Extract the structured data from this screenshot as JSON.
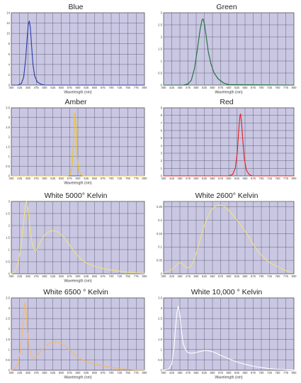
{
  "colors": {
    "plot_bg": "#c9c7e2",
    "grid": "#5a5a6e",
    "axis": "#333333"
  },
  "chart_data": [
    {
      "type": "line",
      "title": "Blue",
      "xlabel": "Wavelength (nm)",
      "xlim": [
        400,
        800
      ],
      "xticks": [
        400,
        425,
        450,
        475,
        500,
        525,
        550,
        575,
        600,
        625,
        650,
        675,
        700,
        725,
        750,
        775,
        800
      ],
      "ylim": [
        0,
        14
      ],
      "yticks": [
        0,
        2,
        4,
        6,
        8,
        10,
        12,
        14
      ],
      "series": [
        {
          "color": "#2a3aa8",
          "points": [
            [
              400,
              0
            ],
            [
              420,
              0
            ],
            [
              430,
              0.3
            ],
            [
              437,
              1.5
            ],
            [
              443,
              5
            ],
            [
              448,
              9.5
            ],
            [
              451,
              11.8
            ],
            [
              454,
              12.4
            ],
            [
              457,
              11.2
            ],
            [
              461,
              7.5
            ],
            [
              465,
              4
            ],
            [
              470,
              1.8
            ],
            [
              478,
              0.6
            ],
            [
              490,
              0.15
            ],
            [
              500,
              0
            ],
            [
              800,
              0
            ]
          ]
        }
      ]
    },
    {
      "type": "line",
      "title": "Green",
      "xlabel": "Wavelength (nm)",
      "xlim": [
        400,
        800
      ],
      "xticks": [
        400,
        425,
        450,
        475,
        500,
        525,
        550,
        575,
        600,
        625,
        650,
        675,
        700,
        725,
        750,
        775,
        800
      ],
      "ylim": [
        0,
        3.0
      ],
      "yticks": [
        0,
        0.5,
        1.0,
        1.5,
        2.0,
        2.5,
        3.0
      ],
      "series": [
        {
          "color": "#1d6e3a",
          "points": [
            [
              400,
              0
            ],
            [
              460,
              0
            ],
            [
              475,
              0.05
            ],
            [
              485,
              0.2
            ],
            [
              495,
              0.7
            ],
            [
              505,
              1.6
            ],
            [
              512,
              2.3
            ],
            [
              518,
              2.7
            ],
            [
              521,
              2.75
            ],
            [
              525,
              2.55
            ],
            [
              530,
              2.1
            ],
            [
              537,
              1.4
            ],
            [
              545,
              0.9
            ],
            [
              555,
              0.5
            ],
            [
              568,
              0.25
            ],
            [
              585,
              0.08
            ],
            [
              600,
              0.02
            ],
            [
              800,
              0
            ]
          ]
        }
      ]
    },
    {
      "type": "line",
      "title": "Amber",
      "xlabel": "Wavelength (nm)",
      "xlim": [
        400,
        800
      ],
      "xticks": [
        400,
        425,
        450,
        475,
        500,
        525,
        550,
        575,
        600,
        625,
        650,
        675,
        700,
        725,
        750,
        775,
        800
      ],
      "ylim": [
        0,
        3.5
      ],
      "yticks": [
        0,
        0.5,
        1.0,
        1.5,
        2.0,
        2.5,
        3.0,
        3.5
      ],
      "series": [
        {
          "color": "#f0c419",
          "points": [
            [
              400,
              0
            ],
            [
              570,
              0
            ],
            [
              578,
              0.1
            ],
            [
              583,
              0.6
            ],
            [
              587,
              1.8
            ],
            [
              590,
              3.1
            ],
            [
              592,
              3.25
            ],
            [
              595,
              2.2
            ],
            [
              598,
              1.0
            ],
            [
              602,
              0.35
            ],
            [
              608,
              0.08
            ],
            [
              615,
              0
            ],
            [
              800,
              0
            ]
          ]
        }
      ]
    },
    {
      "type": "line",
      "title": "Red",
      "xlabel": "",
      "xlim": [
        400,
        800
      ],
      "xticks": [
        400,
        425,
        450,
        475,
        500,
        525,
        550,
        575,
        600,
        625,
        650,
        675,
        700,
        725,
        750,
        775,
        800
      ],
      "ylim": [
        0,
        9
      ],
      "yticks": [
        0,
        1,
        2,
        3,
        4,
        5,
        6,
        7,
        8,
        9
      ],
      "series": [
        {
          "color": "#e02020",
          "points": [
            [
              400,
              0
            ],
            [
              600,
              0
            ],
            [
              612,
              0.2
            ],
            [
              620,
              1.0
            ],
            [
              626,
              3
            ],
            [
              631,
              6.3
            ],
            [
              634,
              7.8
            ],
            [
              636,
              8.2
            ],
            [
              639,
              7.2
            ],
            [
              643,
              4.8
            ],
            [
              648,
              2.2
            ],
            [
              654,
              0.8
            ],
            [
              662,
              0.2
            ],
            [
              672,
              0
            ],
            [
              800,
              0
            ]
          ]
        }
      ]
    },
    {
      "type": "line",
      "title": "White 5000° Kelvin",
      "xlabel": "Wavelength (nm)",
      "xlim": [
        400,
        800
      ],
      "xticks": [
        400,
        425,
        450,
        475,
        500,
        525,
        550,
        575,
        600,
        625,
        650,
        675,
        700,
        725,
        750,
        775,
        800
      ],
      "ylim": [
        0,
        3.0
      ],
      "yticks": [
        0,
        0.5,
        1.0,
        1.5,
        2.0,
        2.5,
        3.0
      ],
      "series": [
        {
          "color": "#f3e27a",
          "points": [
            [
              400,
              0
            ],
            [
              410,
              0.08
            ],
            [
              420,
              0.4
            ],
            [
              430,
              1.2
            ],
            [
              438,
              2.3
            ],
            [
              443,
              2.9
            ],
            [
              446,
              3.0
            ],
            [
              450,
              2.7
            ],
            [
              456,
              1.9
            ],
            [
              462,
              1.3
            ],
            [
              468,
              1.0
            ],
            [
              473,
              0.95
            ],
            [
              480,
              1.1
            ],
            [
              490,
              1.4
            ],
            [
              500,
              1.6
            ],
            [
              510,
              1.72
            ],
            [
              520,
              1.78
            ],
            [
              530,
              1.78
            ],
            [
              540,
              1.73
            ],
            [
              550,
              1.62
            ],
            [
              560,
              1.48
            ],
            [
              570,
              1.28
            ],
            [
              580,
              1.08
            ],
            [
              590,
              0.9
            ],
            [
              600,
              0.74
            ],
            [
              610,
              0.6
            ],
            [
              620,
              0.5
            ],
            [
              630,
              0.42
            ],
            [
              640,
              0.36
            ],
            [
              660,
              0.27
            ],
            [
              680,
              0.2
            ],
            [
              700,
              0.16
            ],
            [
              720,
              0.12
            ],
            [
              740,
              0.08
            ],
            [
              760,
              0.05
            ],
            [
              780,
              0.03
            ],
            [
              800,
              0.02
            ]
          ]
        }
      ]
    },
    {
      "type": "line",
      "title": "White 2600° Kelvin",
      "xlabel": "",
      "xlim": [
        400,
        800
      ],
      "xticks": [
        400,
        425,
        450,
        475,
        500,
        525,
        550,
        575,
        600,
        625,
        650,
        675,
        700,
        725,
        750,
        775,
        800
      ],
      "ylim": [
        0,
        0.27
      ],
      "yticks": [
        0,
        0.05,
        0.1,
        0.15,
        0.2,
        0.25
      ],
      "series": [
        {
          "color": "#f3e27a",
          "points": [
            [
              400,
              0.005
            ],
            [
              420,
              0.012
            ],
            [
              435,
              0.025
            ],
            [
              445,
              0.038
            ],
            [
              452,
              0.042
            ],
            [
              460,
              0.035
            ],
            [
              468,
              0.025
            ],
            [
              475,
              0.022
            ],
            [
              485,
              0.03
            ],
            [
              495,
              0.055
            ],
            [
              505,
              0.095
            ],
            [
              515,
              0.14
            ],
            [
              525,
              0.18
            ],
            [
              535,
              0.21
            ],
            [
              545,
              0.235
            ],
            [
              555,
              0.248
            ],
            [
              565,
              0.255
            ],
            [
              575,
              0.256
            ],
            [
              585,
              0.252
            ],
            [
              595,
              0.243
            ],
            [
              605,
              0.23
            ],
            [
              615,
              0.215
            ],
            [
              625,
              0.2
            ],
            [
              635,
              0.185
            ],
            [
              645,
              0.168
            ],
            [
              655,
              0.15
            ],
            [
              665,
              0.13
            ],
            [
              675,
              0.11
            ],
            [
              685,
              0.092
            ],
            [
              695,
              0.076
            ],
            [
              705,
              0.064
            ],
            [
              715,
              0.052
            ],
            [
              725,
              0.043
            ],
            [
              735,
              0.035
            ],
            [
              745,
              0.03
            ],
            [
              755,
              0.024
            ],
            [
              765,
              0.018
            ],
            [
              775,
              0.012
            ],
            [
              785,
              0.008
            ],
            [
              790,
              0.005
            ]
          ]
        }
      ]
    },
    {
      "type": "line",
      "title": "White 6500 ° Kelvin",
      "xlabel": "Wavelength (nm)",
      "xlim": [
        400,
        800
      ],
      "xticks": [
        400,
        425,
        450,
        475,
        500,
        525,
        550,
        575,
        600,
        625,
        650,
        675,
        700,
        725,
        750,
        775,
        800
      ],
      "ylim": [
        0,
        3.5
      ],
      "yticks": [
        0,
        0.5,
        1.0,
        1.5,
        2.0,
        2.5,
        3.0,
        3.5
      ],
      "series": [
        {
          "color": "#f7b764",
          "points": [
            [
              400,
              0
            ],
            [
              410,
              0.05
            ],
            [
              420,
              0.3
            ],
            [
              428,
              1.0
            ],
            [
              434,
              2.0
            ],
            [
              438,
              2.8
            ],
            [
              441,
              3.3
            ],
            [
              444,
              3.0
            ],
            [
              448,
              2.0
            ],
            [
              453,
              1.2
            ],
            [
              458,
              0.8
            ],
            [
              465,
              0.6
            ],
            [
              472,
              0.62
            ],
            [
              480,
              0.75
            ],
            [
              490,
              0.95
            ],
            [
              500,
              1.12
            ],
            [
              510,
              1.25
            ],
            [
              520,
              1.34
            ],
            [
              530,
              1.38
            ],
            [
              540,
              1.36
            ],
            [
              550,
              1.3
            ],
            [
              560,
              1.2
            ],
            [
              570,
              1.05
            ],
            [
              580,
              0.9
            ],
            [
              590,
              0.75
            ],
            [
              600,
              0.62
            ],
            [
              615,
              0.5
            ],
            [
              630,
              0.4
            ],
            [
              650,
              0.3
            ],
            [
              670,
              0.22
            ],
            [
              690,
              0.16
            ],
            [
              710,
              0.11
            ],
            [
              730,
              0.07
            ],
            [
              750,
              0.04
            ],
            [
              770,
              0.02
            ],
            [
              800,
              0.01
            ]
          ]
        }
      ]
    },
    {
      "type": "line",
      "title": "White 10,000 ° Kelvin",
      "xlabel": "Wavelength (nm)",
      "xlim": [
        400,
        800
      ],
      "xticks": [
        400,
        425,
        450,
        475,
        500,
        525,
        550,
        575,
        600,
        625,
        650,
        675,
        700,
        725,
        750,
        775,
        800
      ],
      "ylim": [
        0,
        3.5
      ],
      "yticks": [
        0,
        0.5,
        1.0,
        1.5,
        2.0,
        2.5,
        3.0,
        3.5
      ],
      "series": [
        {
          "color": "#ffffff",
          "points": [
            [
              400,
              0
            ],
            [
              415,
              0.05
            ],
            [
              425,
              0.3
            ],
            [
              432,
              1.1
            ],
            [
              437,
              2.1
            ],
            [
              441,
              2.8
            ],
            [
              445,
              3.1
            ],
            [
              449,
              2.8
            ],
            [
              454,
              2.0
            ],
            [
              460,
              1.3
            ],
            [
              467,
              1.0
            ],
            [
              475,
              0.85
            ],
            [
              485,
              0.82
            ],
            [
              495,
              0.84
            ],
            [
              505,
              0.88
            ],
            [
              515,
              0.92
            ],
            [
              525,
              0.95
            ],
            [
              535,
              0.95
            ],
            [
              545,
              0.92
            ],
            [
              555,
              0.87
            ],
            [
              565,
              0.8
            ],
            [
              575,
              0.72
            ],
            [
              590,
              0.62
            ],
            [
              605,
              0.52
            ],
            [
              620,
              0.43
            ],
            [
              640,
              0.33
            ],
            [
              660,
              0.25
            ],
            [
              680,
              0.18
            ],
            [
              700,
              0.13
            ],
            [
              720,
              0.09
            ],
            [
              740,
              0.06
            ],
            [
              760,
              0.04
            ],
            [
              780,
              0.02
            ],
            [
              800,
              0.01
            ]
          ]
        }
      ]
    }
  ]
}
